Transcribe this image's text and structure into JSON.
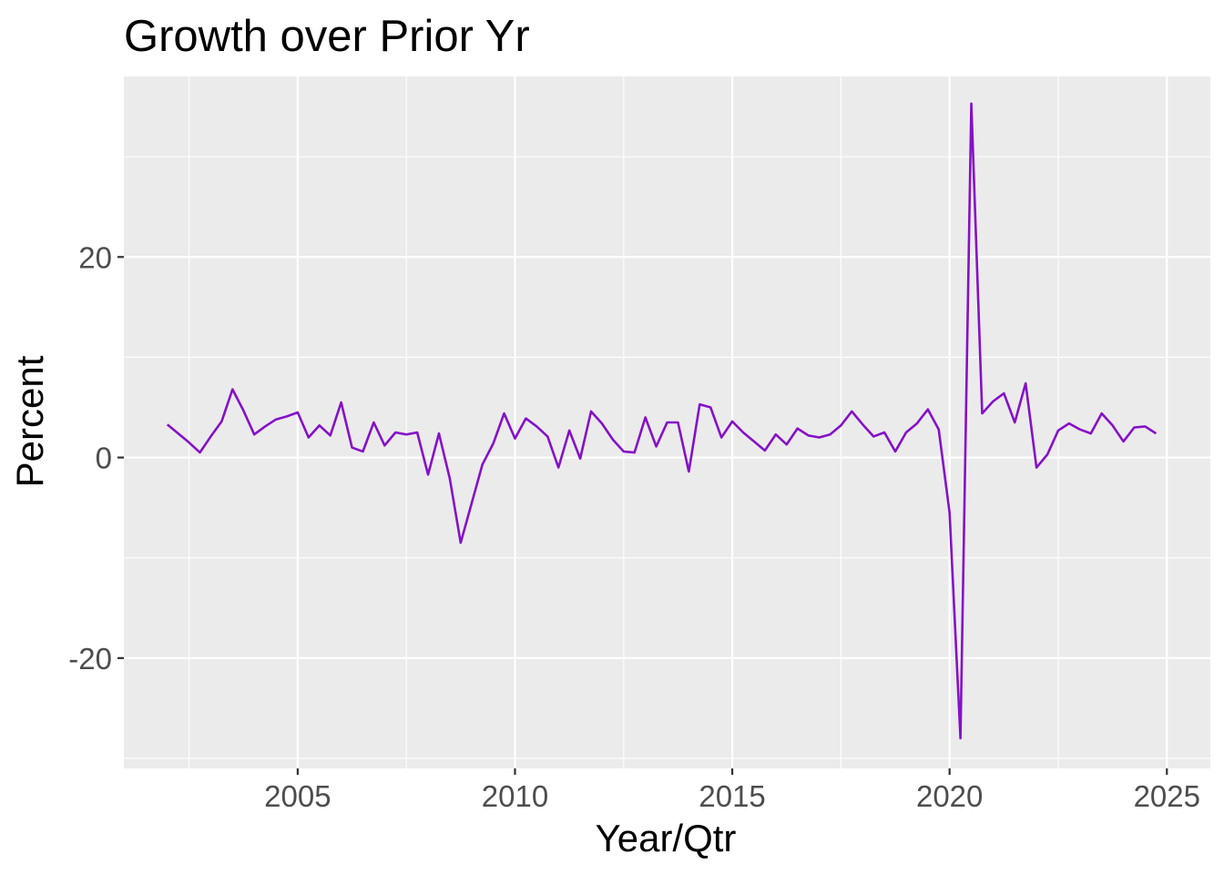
{
  "chart_data": {
    "type": "line",
    "title": "Growth over Prior Yr",
    "xlabel": "Year/Qtr",
    "ylabel": "Percent",
    "xlim": [
      2001.0,
      2026.0
    ],
    "ylim": [
      -31.0,
      38.0
    ],
    "x_ticks": [
      2005,
      2010,
      2015,
      2020,
      2025
    ],
    "x_tick_labels": [
      "2005",
      "2010",
      "2015",
      "2020",
      "2025"
    ],
    "y_ticks": [
      -20,
      0,
      20
    ],
    "y_tick_labels": [
      "-20",
      "0",
      "20"
    ],
    "x_minor_ticks": [
      2002.5,
      2007.5,
      2012.5,
      2017.5,
      2022.5
    ],
    "y_minor_ticks": [
      -30,
      -10,
      10,
      30
    ],
    "grid": true,
    "legend": "none",
    "colors": {
      "line": "#8510c8",
      "panel": "#ebebeb",
      "grid": "#ffffff"
    },
    "series": [
      {
        "values": [
          {
            "x": 2002.0,
            "y": 3.3
          },
          {
            "x": 2002.25,
            "y": 2.4
          },
          {
            "x": 2002.5,
            "y": 1.5
          },
          {
            "x": 2002.75,
            "y": 0.5
          },
          {
            "x": 2003.0,
            "y": 2.1
          },
          {
            "x": 2003.25,
            "y": 3.6
          },
          {
            "x": 2003.5,
            "y": 6.8
          },
          {
            "x": 2003.75,
            "y": 4.7
          },
          {
            "x": 2004.0,
            "y": 2.3
          },
          {
            "x": 2004.25,
            "y": 3.1
          },
          {
            "x": 2004.5,
            "y": 3.8
          },
          {
            "x": 2004.75,
            "y": 4.1
          },
          {
            "x": 2005.0,
            "y": 4.5
          },
          {
            "x": 2005.25,
            "y": 2.0
          },
          {
            "x": 2005.5,
            "y": 3.2
          },
          {
            "x": 2005.75,
            "y": 2.2
          },
          {
            "x": 2006.0,
            "y": 5.5
          },
          {
            "x": 2006.25,
            "y": 1.0
          },
          {
            "x": 2006.5,
            "y": 0.6
          },
          {
            "x": 2006.75,
            "y": 3.5
          },
          {
            "x": 2007.0,
            "y": 1.2
          },
          {
            "x": 2007.25,
            "y": 2.5
          },
          {
            "x": 2007.5,
            "y": 2.3
          },
          {
            "x": 2007.75,
            "y": 2.5
          },
          {
            "x": 2008.0,
            "y": -1.7
          },
          {
            "x": 2008.25,
            "y": 2.4
          },
          {
            "x": 2008.5,
            "y": -2.1
          },
          {
            "x": 2008.75,
            "y": -8.5
          },
          {
            "x": 2009.0,
            "y": -4.6
          },
          {
            "x": 2009.25,
            "y": -0.7
          },
          {
            "x": 2009.5,
            "y": 1.4
          },
          {
            "x": 2009.75,
            "y": 4.4
          },
          {
            "x": 2010.0,
            "y": 1.9
          },
          {
            "x": 2010.25,
            "y": 3.9
          },
          {
            "x": 2010.5,
            "y": 3.1
          },
          {
            "x": 2010.75,
            "y": 2.1
          },
          {
            "x": 2011.0,
            "y": -1.0
          },
          {
            "x": 2011.25,
            "y": 2.7
          },
          {
            "x": 2011.5,
            "y": -0.1
          },
          {
            "x": 2011.75,
            "y": 4.6
          },
          {
            "x": 2012.0,
            "y": 3.4
          },
          {
            "x": 2012.25,
            "y": 1.8
          },
          {
            "x": 2012.5,
            "y": 0.6
          },
          {
            "x": 2012.75,
            "y": 0.5
          },
          {
            "x": 2013.0,
            "y": 4.0
          },
          {
            "x": 2013.25,
            "y": 1.1
          },
          {
            "x": 2013.5,
            "y": 3.5
          },
          {
            "x": 2013.75,
            "y": 3.5
          },
          {
            "x": 2014.0,
            "y": -1.4
          },
          {
            "x": 2014.25,
            "y": 5.3
          },
          {
            "x": 2014.5,
            "y": 5.0
          },
          {
            "x": 2014.75,
            "y": 2.0
          },
          {
            "x": 2015.0,
            "y": 3.6
          },
          {
            "x": 2015.25,
            "y": 2.5
          },
          {
            "x": 2015.5,
            "y": 1.6
          },
          {
            "x": 2015.75,
            "y": 0.7
          },
          {
            "x": 2016.0,
            "y": 2.3
          },
          {
            "x": 2016.25,
            "y": 1.3
          },
          {
            "x": 2016.5,
            "y": 2.9
          },
          {
            "x": 2016.75,
            "y": 2.2
          },
          {
            "x": 2017.0,
            "y": 2.0
          },
          {
            "x": 2017.25,
            "y": 2.3
          },
          {
            "x": 2017.5,
            "y": 3.2
          },
          {
            "x": 2017.75,
            "y": 4.6
          },
          {
            "x": 2018.0,
            "y": 3.3
          },
          {
            "x": 2018.25,
            "y": 2.1
          },
          {
            "x": 2018.5,
            "y": 2.5
          },
          {
            "x": 2018.75,
            "y": 0.6
          },
          {
            "x": 2019.0,
            "y": 2.5
          },
          {
            "x": 2019.25,
            "y": 3.4
          },
          {
            "x": 2019.5,
            "y": 4.8
          },
          {
            "x": 2019.75,
            "y": 2.8
          },
          {
            "x": 2020.0,
            "y": -5.5
          },
          {
            "x": 2020.25,
            "y": -28.0
          },
          {
            "x": 2020.5,
            "y": 35.3
          },
          {
            "x": 2020.75,
            "y": 4.4
          },
          {
            "x": 2021.0,
            "y": 5.6
          },
          {
            "x": 2021.25,
            "y": 6.4
          },
          {
            "x": 2021.5,
            "y": 3.5
          },
          {
            "x": 2021.75,
            "y": 7.4
          },
          {
            "x": 2022.0,
            "y": -1.0
          },
          {
            "x": 2022.25,
            "y": 0.3
          },
          {
            "x": 2022.5,
            "y": 2.7
          },
          {
            "x": 2022.75,
            "y": 3.4
          },
          {
            "x": 2023.0,
            "y": 2.8
          },
          {
            "x": 2023.25,
            "y": 2.4
          },
          {
            "x": 2023.5,
            "y": 4.4
          },
          {
            "x": 2023.75,
            "y": 3.2
          },
          {
            "x": 2024.0,
            "y": 1.6
          },
          {
            "x": 2024.25,
            "y": 3.0
          },
          {
            "x": 2024.5,
            "y": 3.1
          },
          {
            "x": 2024.75,
            "y": 2.4
          }
        ]
      }
    ]
  }
}
